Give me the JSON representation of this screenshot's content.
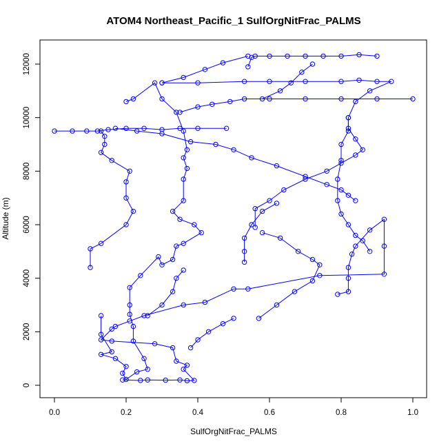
{
  "chart_data": {
    "type": "line",
    "title": "ATOM4 Northeast_Pacific_1 SulfOrgNitFrac_PALMS",
    "xlabel": "SulfOrgNitFrac_PALMS",
    "ylabel": "Altitude (m)",
    "xlim": [
      0.0,
      1.0
    ],
    "ylim": [
      0,
      12500
    ],
    "xticks": [
      "0.0",
      "0.2",
      "0.4",
      "0.6",
      "0.8",
      "1.0"
    ],
    "yticks": [
      "0",
      "2000",
      "4000",
      "6000",
      "8000",
      "10000",
      "12000"
    ],
    "grid": false,
    "legend": "none",
    "series_style": "line with open circle markers",
    "color": "#0000ff",
    "series": [
      {
        "points": [
          [
            0.19,
            200
          ],
          [
            0.24,
            180
          ],
          [
            0.26,
            200
          ],
          [
            0.31,
            190
          ],
          [
            0.35,
            200
          ],
          [
            0.37,
            170
          ],
          [
            0.39,
            180
          ],
          [
            0.36,
            600
          ],
          [
            0.37,
            750
          ],
          [
            0.34,
            900
          ],
          [
            0.33,
            1400
          ],
          [
            0.28,
            1550
          ],
          [
            0.16,
            1650
          ],
          [
            0.13,
            1700
          ],
          [
            0.16,
            2100
          ],
          [
            0.17,
            2200
          ],
          [
            0.21,
            2400
          ],
          [
            0.25,
            2600
          ],
          [
            0.36,
            3000
          ],
          [
            0.42,
            3100
          ],
          [
            0.5,
            3600
          ],
          [
            0.54,
            3600
          ],
          [
            0.74,
            4100
          ],
          [
            0.92,
            4150
          ],
          [
            0.92,
            5200
          ],
          [
            0.92,
            6200
          ],
          [
            0.88,
            5800
          ],
          [
            0.84,
            5200
          ],
          [
            0.83,
            4900
          ],
          [
            0.82,
            4400
          ],
          [
            0.82,
            4000
          ],
          [
            0.82,
            3500
          ],
          [
            0.79,
            3400
          ]
        ]
      },
      {
        "points": [
          [
            0.13,
            2600
          ],
          [
            0.13,
            1900
          ],
          [
            0.16,
            1250
          ],
          [
            0.13,
            1150
          ],
          [
            0.17,
            1000
          ],
          [
            0.2,
            700
          ],
          [
            0.19,
            450
          ],
          [
            0.2,
            220
          ],
          [
            0.23,
            500
          ],
          [
            0.26,
            600
          ],
          [
            0.25,
            1000
          ],
          [
            0.22,
            1650
          ],
          [
            0.22,
            2200
          ],
          [
            0.21,
            2650
          ],
          [
            0.21,
            3000
          ],
          [
            0.21,
            3650
          ],
          [
            0.24,
            4100
          ],
          [
            0.29,
            4800
          ],
          [
            0.3,
            4500
          ],
          [
            0.33,
            4700
          ],
          [
            0.34,
            5200
          ],
          [
            0.36,
            5300
          ],
          [
            0.41,
            5700
          ],
          [
            0.39,
            6000
          ],
          [
            0.35,
            6200
          ],
          [
            0.33,
            6500
          ],
          [
            0.36,
            6900
          ],
          [
            0.36,
            7700
          ],
          [
            0.37,
            8100
          ],
          [
            0.36,
            8500
          ],
          [
            0.37,
            8800
          ],
          [
            0.36,
            9500
          ],
          [
            0.34,
            10200
          ],
          [
            0.3,
            10700
          ],
          [
            0.28,
            11300
          ],
          [
            0.22,
            10700
          ],
          [
            0.2,
            10600
          ]
        ]
      },
      {
        "points": [
          [
            0.1,
            4400
          ],
          [
            0.1,
            5100
          ],
          [
            0.13,
            5300
          ],
          [
            0.2,
            6000
          ],
          [
            0.22,
            6500
          ],
          [
            0.2,
            7000
          ],
          [
            0.2,
            7600
          ],
          [
            0.21,
            8000
          ],
          [
            0.16,
            8400
          ],
          [
            0.13,
            8700
          ],
          [
            0.14,
            9000
          ],
          [
            0.14,
            9300
          ],
          [
            0.13,
            9500
          ],
          [
            0.0,
            9500
          ],
          [
            0.05,
            9500
          ],
          [
            0.09,
            9500
          ],
          [
            0.12,
            9500
          ],
          [
            0.15,
            9550
          ],
          [
            0.2,
            9600
          ],
          [
            0.25,
            9600
          ],
          [
            0.3,
            9550
          ],
          [
            0.35,
            9600
          ],
          [
            0.4,
            9600
          ],
          [
            0.48,
            9600
          ]
        ]
      },
      {
        "points": [
          [
            0.17,
            9600
          ],
          [
            0.23,
            9500
          ],
          [
            0.3,
            9400
          ],
          [
            0.38,
            9100
          ],
          [
            0.45,
            9000
          ],
          [
            0.5,
            8800
          ],
          [
            0.55,
            8500
          ],
          [
            0.62,
            8200
          ],
          [
            0.7,
            7800
          ],
          [
            0.76,
            7500
          ],
          [
            0.8,
            7300
          ],
          [
            0.82,
            7100
          ],
          [
            0.84,
            6900
          ]
        ]
      },
      {
        "points": [
          [
            0.35,
            10200
          ],
          [
            0.4,
            10400
          ],
          [
            0.44,
            10500
          ],
          [
            0.49,
            10600
          ],
          [
            0.53,
            10700
          ],
          [
            0.6,
            10700
          ],
          [
            0.7,
            10700
          ],
          [
            0.8,
            10700
          ],
          [
            0.9,
            10700
          ],
          [
            1.0,
            10700
          ]
        ]
      },
      {
        "points": [
          [
            0.3,
            11300
          ],
          [
            0.4,
            11300
          ],
          [
            0.53,
            11350
          ],
          [
            0.6,
            11350
          ],
          [
            0.7,
            11350
          ],
          [
            0.8,
            11350
          ],
          [
            0.85,
            11400
          ],
          [
            0.9,
            11350
          ],
          [
            0.94,
            11350
          ],
          [
            0.88,
            11000
          ],
          [
            0.84,
            10600
          ],
          [
            0.82,
            10000
          ],
          [
            0.82,
            9500
          ],
          [
            0.8,
            9000
          ],
          [
            0.8,
            8400
          ],
          [
            0.79,
            7700
          ],
          [
            0.79,
            6900
          ],
          [
            0.8,
            6400
          ],
          [
            0.82,
            6000
          ],
          [
            0.84,
            5600
          ],
          [
            0.86,
            5400
          ],
          [
            0.88,
            5000
          ]
        ]
      },
      {
        "points": [
          [
            0.54,
            11900
          ],
          [
            0.55,
            12250
          ],
          [
            0.56,
            12300
          ],
          [
            0.6,
            12300
          ],
          [
            0.65,
            12300
          ],
          [
            0.7,
            12300
          ],
          [
            0.75,
            12300
          ],
          [
            0.8,
            12300
          ],
          [
            0.85,
            12350
          ],
          [
            0.9,
            12300
          ]
        ]
      },
      {
        "points": [
          [
            0.3,
            11300
          ],
          [
            0.36,
            11500
          ],
          [
            0.42,
            11800
          ],
          [
            0.47,
            12050
          ],
          [
            0.54,
            12300
          ]
        ]
      },
      {
        "points": [
          [
            0.72,
            12000
          ],
          [
            0.69,
            11700
          ],
          [
            0.66,
            11300
          ],
          [
            0.63,
            11000
          ],
          [
            0.58,
            10700
          ]
        ]
      },
      {
        "points": [
          [
            0.56,
            5900
          ],
          [
            0.56,
            6600
          ],
          [
            0.6,
            6900
          ],
          [
            0.64,
            7300
          ],
          [
            0.7,
            7700
          ],
          [
            0.76,
            8000
          ],
          [
            0.8,
            8300
          ],
          [
            0.84,
            8600
          ],
          [
            0.86,
            8800
          ],
          [
            0.84,
            9200
          ],
          [
            0.82,
            9600
          ],
          [
            0.82,
            10000
          ]
        ]
      },
      {
        "points": [
          [
            0.53,
            4600
          ],
          [
            0.53,
            5000
          ],
          [
            0.53,
            5500
          ],
          [
            0.55,
            6000
          ],
          [
            0.58,
            6500
          ],
          [
            0.62,
            6800
          ]
        ]
      },
      {
        "points": [
          [
            0.57,
            2500
          ],
          [
            0.62,
            3000
          ],
          [
            0.67,
            3500
          ],
          [
            0.72,
            3900
          ],
          [
            0.74,
            4500
          ],
          [
            0.72,
            4700
          ],
          [
            0.68,
            5000
          ],
          [
            0.63,
            5500
          ],
          [
            0.58,
            5700
          ]
        ]
      },
      {
        "points": [
          [
            0.38,
            1400
          ],
          [
            0.4,
            1700
          ],
          [
            0.43,
            2000
          ],
          [
            0.47,
            2300
          ],
          [
            0.5,
            2500
          ]
        ]
      },
      {
        "points": [
          [
            0.26,
            2600
          ],
          [
            0.3,
            3000
          ],
          [
            0.33,
            3500
          ],
          [
            0.34,
            4000
          ],
          [
            0.36,
            4300
          ]
        ]
      }
    ]
  }
}
